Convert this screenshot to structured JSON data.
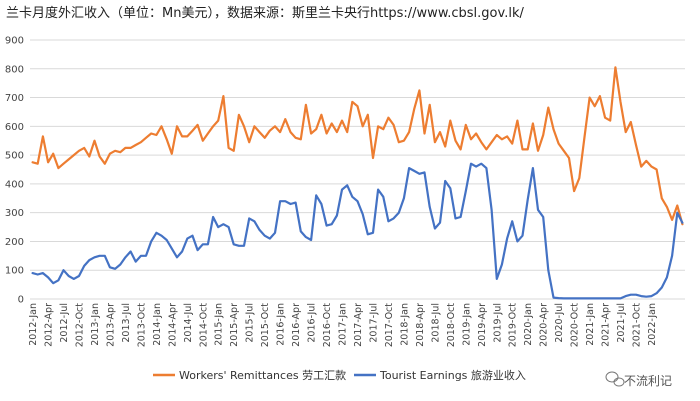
{
  "chart_data": {
    "type": "line",
    "title": "兰卡月度外汇收入（单位：Mn美元），数据来源：斯里兰卡央行https://www.cbsl.gov.lk/",
    "xlabel": "",
    "ylabel": "",
    "ylim": [
      0,
      900
    ],
    "yticks": [
      0,
      100,
      200,
      300,
      400,
      500,
      600,
      700,
      800,
      900
    ],
    "grid": true,
    "legend_position": "bottom",
    "x_tick_labels": [
      "2012-Jan",
      "2012-Apr",
      "2012-Jul",
      "2012-Oct",
      "2013-Jan",
      "2013-Apr",
      "2013-Jul",
      "2013-Oct",
      "2014-Jan",
      "2014-Apr",
      "2014-Jul",
      "2014-Oct",
      "2015-Jan",
      "2015-Apr",
      "2015-Jul",
      "2015-Oct",
      "2016-Jan",
      "2016-Apr",
      "2016-Jul",
      "2016-Oct",
      "2017-Jan",
      "2017-Apr",
      "2017-Jul",
      "2017-Oct",
      "2018-Jan",
      "2018-Apr",
      "2018-Jul",
      "2018-Oct",
      "2019-Jan",
      "2019-Apr",
      "2019-Jul",
      "2019-Oct",
      "2020-Jan",
      "2020-Apr",
      "2020-Jul",
      "2020-Oct",
      "2021-Jan",
      "2021-Apr",
      "2021-Jul",
      "2021-Oct",
      "2022-Jan"
    ],
    "series": [
      {
        "name": "Workers' Remittances 劳工汇款",
        "color": "#ED7D31",
        "values": [
          475,
          470,
          565,
          475,
          505,
          455,
          470,
          485,
          500,
          515,
          525,
          495,
          550,
          495,
          470,
          505,
          515,
          510,
          525,
          525,
          535,
          545,
          560,
          575,
          570,
          600,
          555,
          505,
          600,
          565,
          565,
          585,
          605,
          550,
          575,
          600,
          620,
          705,
          525,
          515,
          640,
          600,
          545,
          600,
          580,
          560,
          585,
          600,
          580,
          625,
          580,
          560,
          555,
          675,
          575,
          590,
          640,
          575,
          610,
          580,
          620,
          580,
          685,
          670,
          600,
          640,
          490,
          600,
          590,
          630,
          605,
          545,
          550,
          580,
          660,
          725,
          575,
          675,
          545,
          580,
          530,
          620,
          550,
          520,
          605,
          555,
          575,
          545,
          520,
          545,
          570,
          555,
          565,
          540,
          620,
          520,
          520,
          610,
          515,
          570,
          665,
          590,
          540,
          515,
          490,
          375,
          420,
          560,
          700,
          670,
          705,
          630,
          620,
          805,
          685,
          580,
          615,
          535,
          460,
          480,
          460,
          450,
          350,
          320,
          275,
          325,
          260
        ],
        "labels": []
      },
      {
        "name": "Tourist Earnings 旅游业收入",
        "color": "#4472C4",
        "values": [
          90,
          85,
          90,
          75,
          55,
          65,
          100,
          80,
          70,
          80,
          115,
          135,
          145,
          150,
          150,
          110,
          105,
          120,
          145,
          165,
          130,
          150,
          150,
          200,
          230,
          220,
          205,
          175,
          145,
          165,
          210,
          220,
          170,
          190,
          190,
          285,
          250,
          260,
          250,
          190,
          185,
          185,
          280,
          270,
          240,
          220,
          210,
          230,
          340,
          340,
          330,
          335,
          235,
          215,
          205,
          360,
          330,
          255,
          260,
          290,
          380,
          395,
          355,
          340,
          295,
          225,
          230,
          380,
          355,
          270,
          280,
          300,
          350,
          455,
          445,
          435,
          440,
          320,
          245,
          265,
          410,
          385,
          280,
          285,
          375,
          470,
          460,
          470,
          455,
          310,
          70,
          120,
          210,
          270,
          200,
          220,
          345,
          455,
          310,
          285,
          100,
          5,
          3,
          2,
          2,
          2,
          2,
          2,
          2,
          2,
          2,
          2,
          2,
          2,
          2,
          10,
          15,
          15,
          10,
          8,
          10,
          20,
          40,
          75,
          150,
          300,
          265
        ],
        "labels": []
      }
    ]
  },
  "watermark": "不流利记"
}
